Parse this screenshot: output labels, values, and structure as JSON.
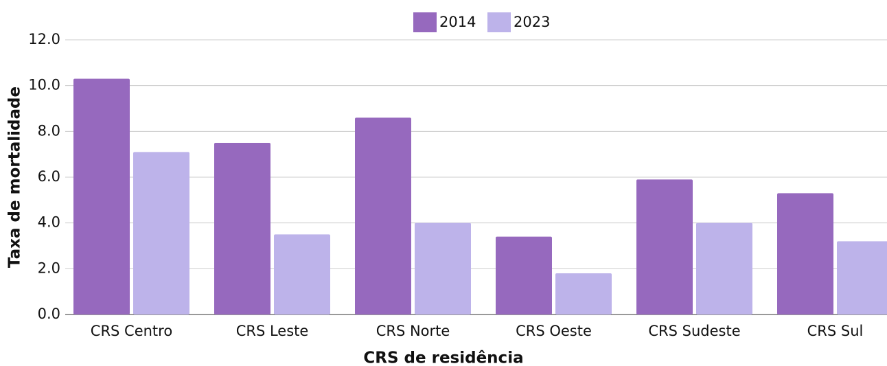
{
  "chart_data": {
    "type": "bar",
    "categories": [
      "CRS Centro",
      "CRS Leste",
      "CRS Norte",
      "CRS Oeste",
      "CRS Sudeste",
      "CRS Sul"
    ],
    "series": [
      {
        "name": "2014",
        "color": "#9669be",
        "values": [
          10.3,
          7.5,
          8.6,
          3.4,
          5.9,
          5.3
        ]
      },
      {
        "name": "2023",
        "color": "#bdb3ea",
        "values": [
          7.1,
          3.5,
          4.0,
          1.8,
          4.0,
          3.2
        ]
      }
    ],
    "x_label": "CRS de residência",
    "y_label": "Taxa de mortalidade",
    "ylim": [
      0,
      12
    ],
    "yticks": [
      {
        "value": 0,
        "label": "0.0"
      },
      {
        "value": 2,
        "label": "2.0"
      },
      {
        "value": 4,
        "label": "4.0"
      },
      {
        "value": 6,
        "label": "6.0"
      },
      {
        "value": 8,
        "label": "8.0"
      },
      {
        "value": 10,
        "label": "10.0"
      },
      {
        "value": 12,
        "label": "12.0"
      }
    ],
    "grid": true,
    "legend": "top"
  }
}
